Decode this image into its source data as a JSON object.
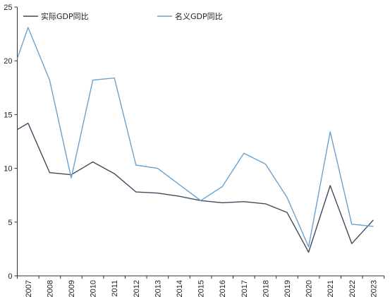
{
  "chart_data": {
    "type": "line",
    "categories": [
      "2007",
      "2008",
      "2009",
      "2010",
      "2011",
      "2012",
      "2013",
      "2014",
      "2015",
      "2016",
      "2017",
      "2018",
      "2019",
      "2020",
      "2021",
      "2022",
      "2023"
    ],
    "x_start_offset": -0.5,
    "ylim": [
      0,
      25
    ],
    "yticks": [
      0,
      5,
      10,
      15,
      20,
      25
    ],
    "grid": false,
    "legend_position": "top",
    "series": [
      {
        "name": "实际GDP同比",
        "color": "#3f4a5c",
        "start_value": 13.6,
        "values": [
          14.2,
          9.6,
          9.4,
          10.6,
          9.5,
          7.8,
          7.7,
          7.4,
          7.0,
          6.8,
          6.9,
          6.7,
          5.9,
          2.2,
          8.4,
          3.0,
          5.2
        ]
      },
      {
        "name": "名义GDP同比",
        "color": "#6aa1d0",
        "start_value": 20.2,
        "values": [
          23.1,
          18.2,
          9.1,
          18.2,
          18.4,
          10.3,
          10.0,
          8.5,
          7.0,
          8.3,
          11.4,
          10.4,
          7.3,
          2.7,
          13.4,
          4.8,
          4.6
        ]
      }
    ]
  }
}
